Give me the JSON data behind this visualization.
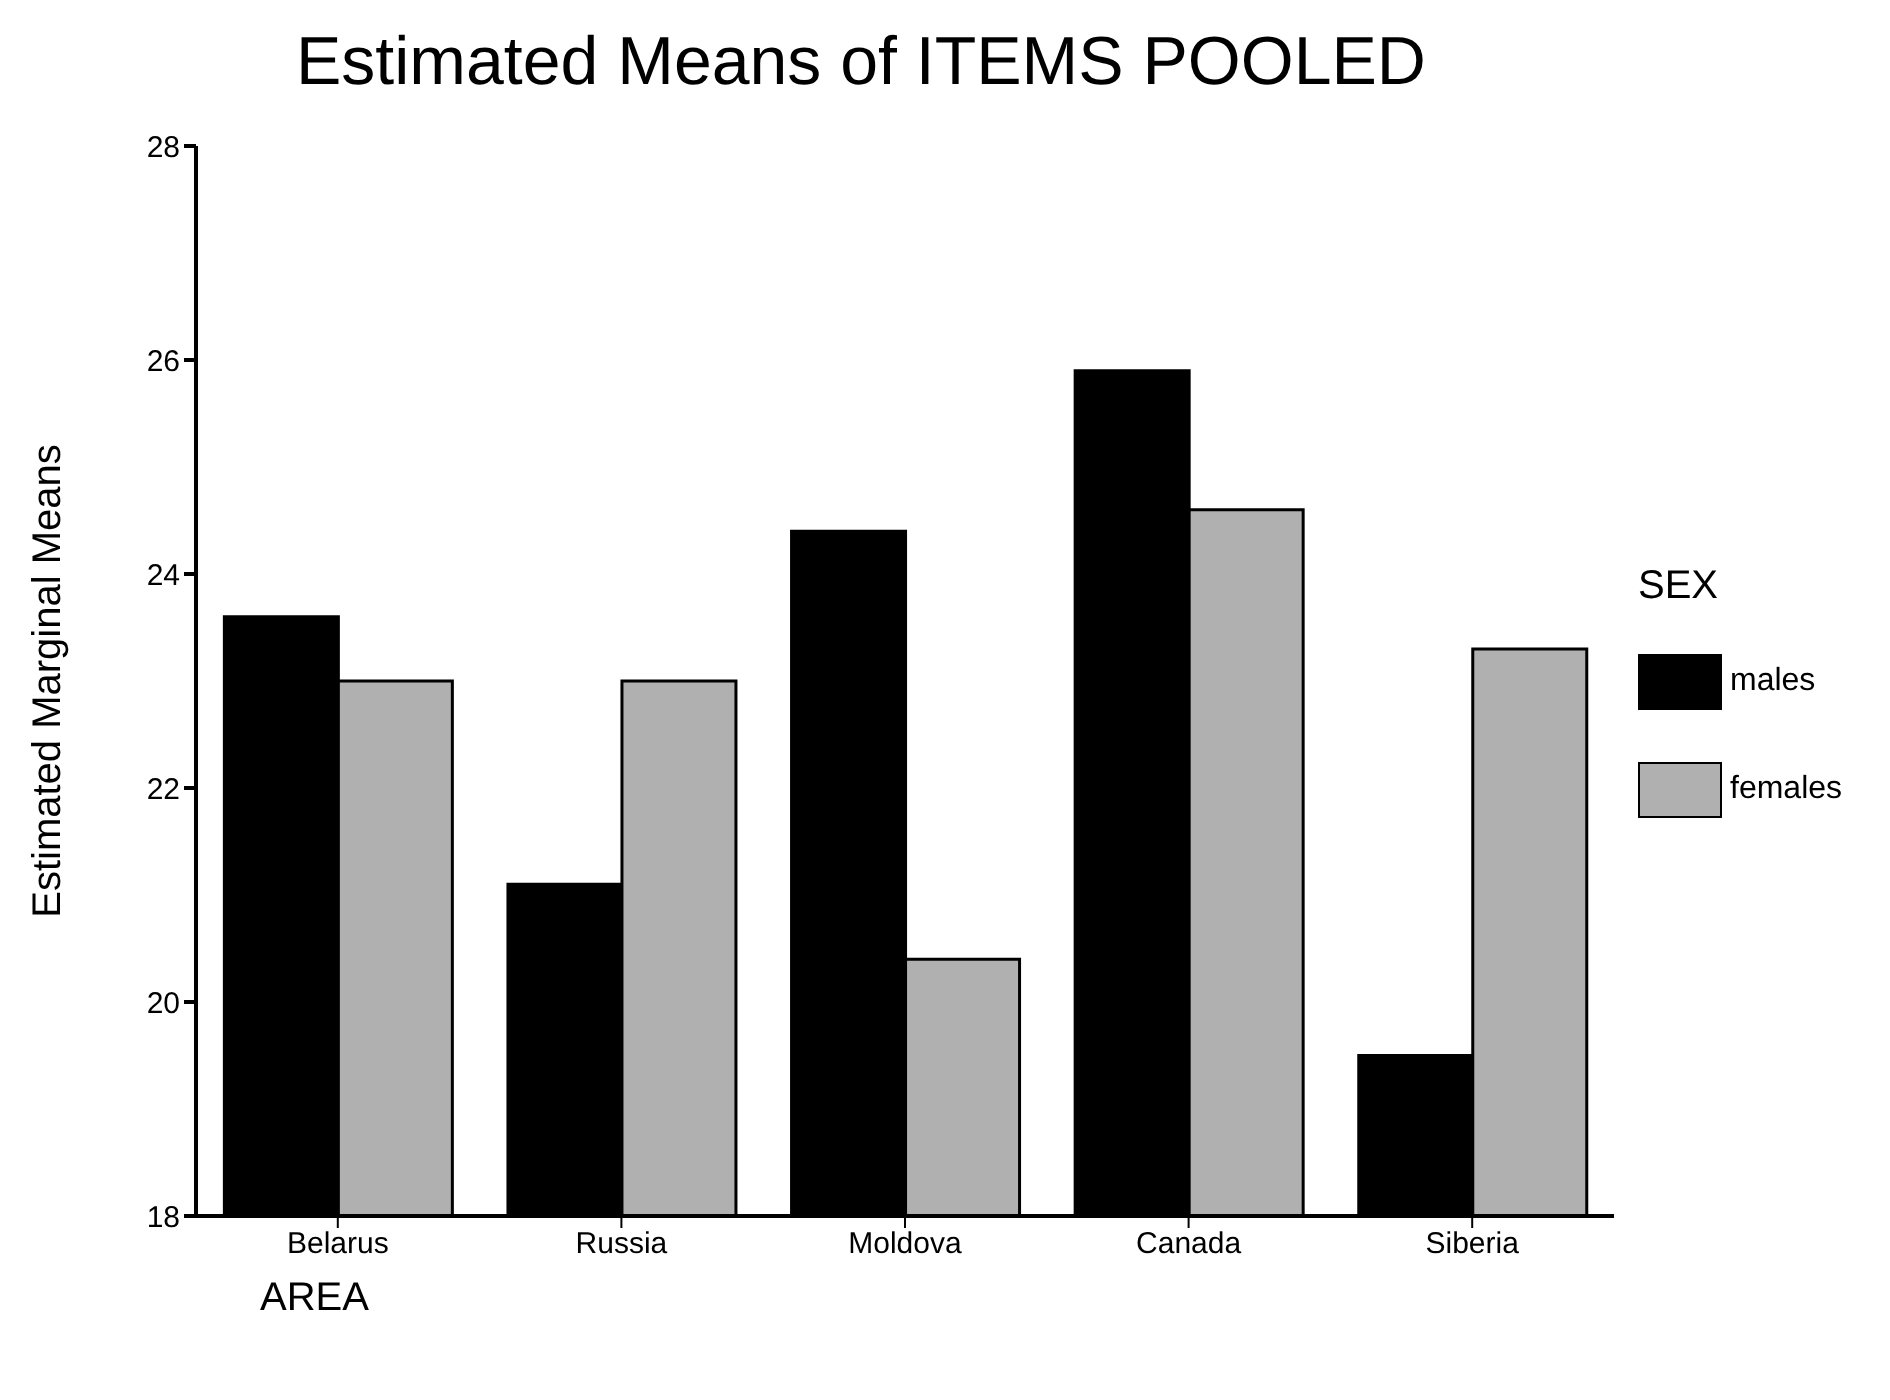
{
  "chart_data": {
    "type": "bar",
    "title": "Estimated Means of ITEMS POOLED",
    "xlabel": "AREA",
    "ylabel": "Estimated Marginal Means",
    "legend_title": "SEX",
    "categories": [
      "Belarus",
      "Russia",
      "Moldova",
      "Canada",
      "Siberia"
    ],
    "series": [
      {
        "name": "males",
        "color": "#000000",
        "values": [
          23.6,
          21.1,
          24.4,
          25.9,
          19.5
        ]
      },
      {
        "name": "females",
        "color": "#b0b0b0",
        "values": [
          23.0,
          23.0,
          20.4,
          24.6,
          23.3
        ]
      }
    ],
    "ylim": [
      18,
      28
    ],
    "yticks": [
      18,
      20,
      22,
      24,
      26,
      28
    ],
    "grid": false,
    "legend": "right"
  }
}
